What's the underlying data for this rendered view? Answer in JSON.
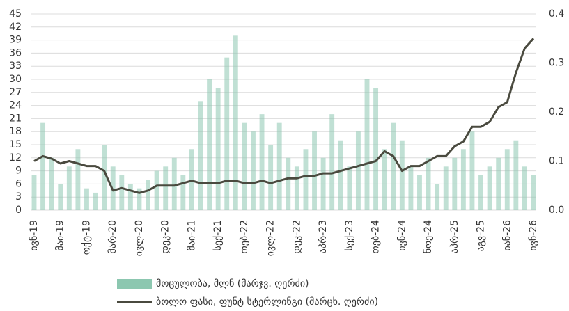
{
  "chart_data": {
    "type": "bar-line",
    "categories": [
      "ივნ-19",
      null,
      null,
      "მაი-19",
      null,
      null,
      "ოქტ-19",
      null,
      null,
      "მარ-20",
      null,
      null,
      "ივლ-20",
      null,
      null,
      "დეკ-20",
      null,
      null,
      "მაი-21",
      null,
      null,
      "სექ-21",
      null,
      null,
      "თებ-22",
      null,
      null,
      "ივლ-22",
      null,
      null,
      "დეკ-22",
      null,
      null,
      "აპრ-23",
      null,
      null,
      "სექ-23",
      null,
      null,
      "თებ-24",
      null,
      null,
      "ივნ-24",
      null,
      null,
      "ნოე-24",
      null,
      null,
      "აპრ-25",
      null,
      null,
      "აგვ-25",
      null,
      null,
      "იან-26",
      null,
      null,
      "ივნ-26"
    ],
    "series": [
      {
        "name": "მოცულობა, მლნ (მარჯვ. ღერძი)",
        "type": "bar",
        "color": "#8cc7b0",
        "values": [
          8,
          20,
          12,
          6,
          10,
          14,
          5,
          4,
          15,
          10,
          8,
          6,
          5,
          7,
          9,
          10,
          12,
          8,
          14,
          25,
          30,
          28,
          35,
          40,
          20,
          18,
          22,
          15,
          20,
          12,
          10,
          14,
          18,
          12,
          22,
          16,
          10,
          18,
          30,
          28,
          14,
          20,
          16,
          10,
          8,
          12,
          6,
          10,
          12,
          14,
          18,
          8,
          10,
          12,
          14,
          16,
          10,
          8
        ]
      },
      {
        "name": "ბოლო ფასი, ფუნტ სტერლინგი (მარცხ. ღერძი)",
        "type": "line",
        "axis": "y2",
        "color": "#4a4a3f",
        "values": [
          0.1,
          0.11,
          0.105,
          0.095,
          0.1,
          0.095,
          0.09,
          0.09,
          0.08,
          0.04,
          0.045,
          0.04,
          0.035,
          0.04,
          0.05,
          0.05,
          0.05,
          0.055,
          0.06,
          0.055,
          0.055,
          0.055,
          0.06,
          0.06,
          0.055,
          0.055,
          0.06,
          0.055,
          0.06,
          0.065,
          0.065,
          0.07,
          0.07,
          0.075,
          0.075,
          0.08,
          0.085,
          0.09,
          0.095,
          0.1,
          0.12,
          0.11,
          0.08,
          0.09,
          0.09,
          0.1,
          0.11,
          0.11,
          0.13,
          0.14,
          0.17,
          0.17,
          0.18,
          0.21,
          0.22,
          0.28,
          0.33,
          0.35
        ]
      }
    ],
    "ylim": [
      0,
      45
    ],
    "yticks": [
      0,
      3,
      6,
      9,
      12,
      15,
      18,
      21,
      24,
      27,
      30,
      33,
      36,
      39,
      42,
      45
    ],
    "y2lim": [
      0,
      0.4
    ],
    "y2ticks": [
      {
        "value": 0,
        "label": "0.0"
      },
      0.1,
      0.2,
      0.3,
      0.4
    ],
    "grid": true
  }
}
